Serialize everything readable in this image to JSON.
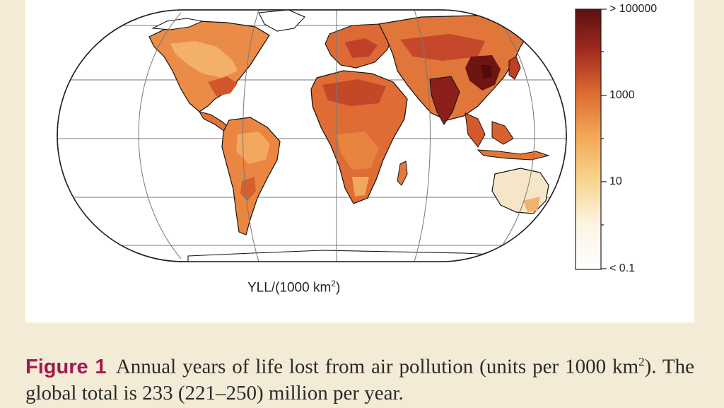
{
  "map": {
    "unit_label_prefix": "YLL/(1000 km",
    "unit_label_sup": "2",
    "unit_label_suffix": ")"
  },
  "legend": {
    "scale": "log",
    "color_low": "#ffffff",
    "color_high": "#5a0f0f",
    "ticks": [
      {
        "label": "> 100000",
        "value": 100000
      },
      {
        "label": "1000",
        "value": 1000
      },
      {
        "label": "10",
        "value": 10
      },
      {
        "label": "< 0.1",
        "value": 0.1
      }
    ]
  },
  "caption": {
    "label": "Figure 1",
    "text_part1": "Annual years of life lost from air pollution (units per 1000 km",
    "text_sup": "2",
    "text_part2": "). The global total is 233 (221–250) million per year."
  }
}
